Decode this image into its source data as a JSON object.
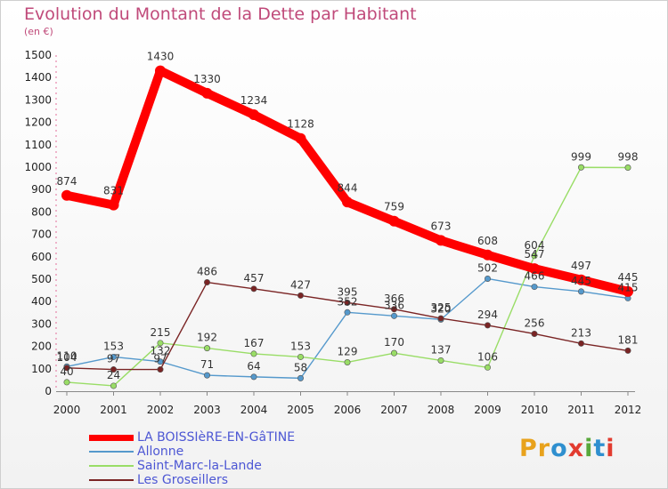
{
  "header": {
    "title": "Evolution du Montant de la Dette par Habitant",
    "subtitle": "(en €)"
  },
  "brand": {
    "logo_text": "Proxiti",
    "logo_colors": [
      "#e8a21c",
      "#e8a21c",
      "#2f8fcf",
      "#e23b2f",
      "#58a83b",
      "#2f8fcf",
      "#e23b2f"
    ]
  },
  "chart_data": {
    "type": "line",
    "x": [
      "2000",
      "2001",
      "2002",
      "2003",
      "2004",
      "2005",
      "2006",
      "2007",
      "2008",
      "2009",
      "2010",
      "2011",
      "2012"
    ],
    "ylim": [
      0,
      1500
    ],
    "yticks": [
      0,
      100,
      200,
      300,
      400,
      500,
      600,
      700,
      800,
      900,
      1000,
      1100,
      1200,
      1300,
      1400,
      1500
    ],
    "grid": false,
    "legend_position": "bottom-left",
    "series": [
      {
        "name": "LA BOISSIèRE-EN-GâTINE",
        "color": "#ff0000",
        "values": [
          874,
          831,
          1430,
          1330,
          1234,
          1128,
          844,
          759,
          673,
          608,
          547,
          497,
          445
        ]
      },
      {
        "name": "Allonne",
        "color": "#5599cc",
        "values": [
          110,
          153,
          132,
          71,
          64,
          58,
          352,
          336,
          320,
          502,
          466,
          445,
          415
        ]
      },
      {
        "name": "Saint-Marc-la-Lande",
        "color": "#99dd66",
        "values": [
          40,
          24,
          215,
          192,
          167,
          153,
          129,
          170,
          137,
          106,
          604,
          999,
          998
        ]
      },
      {
        "name": "Les Groseillers",
        "color": "#7a2424",
        "values": [
          104,
          97,
          97,
          486,
          457,
          427,
          395,
          366,
          325,
          294,
          256,
          213,
          181
        ]
      }
    ]
  }
}
